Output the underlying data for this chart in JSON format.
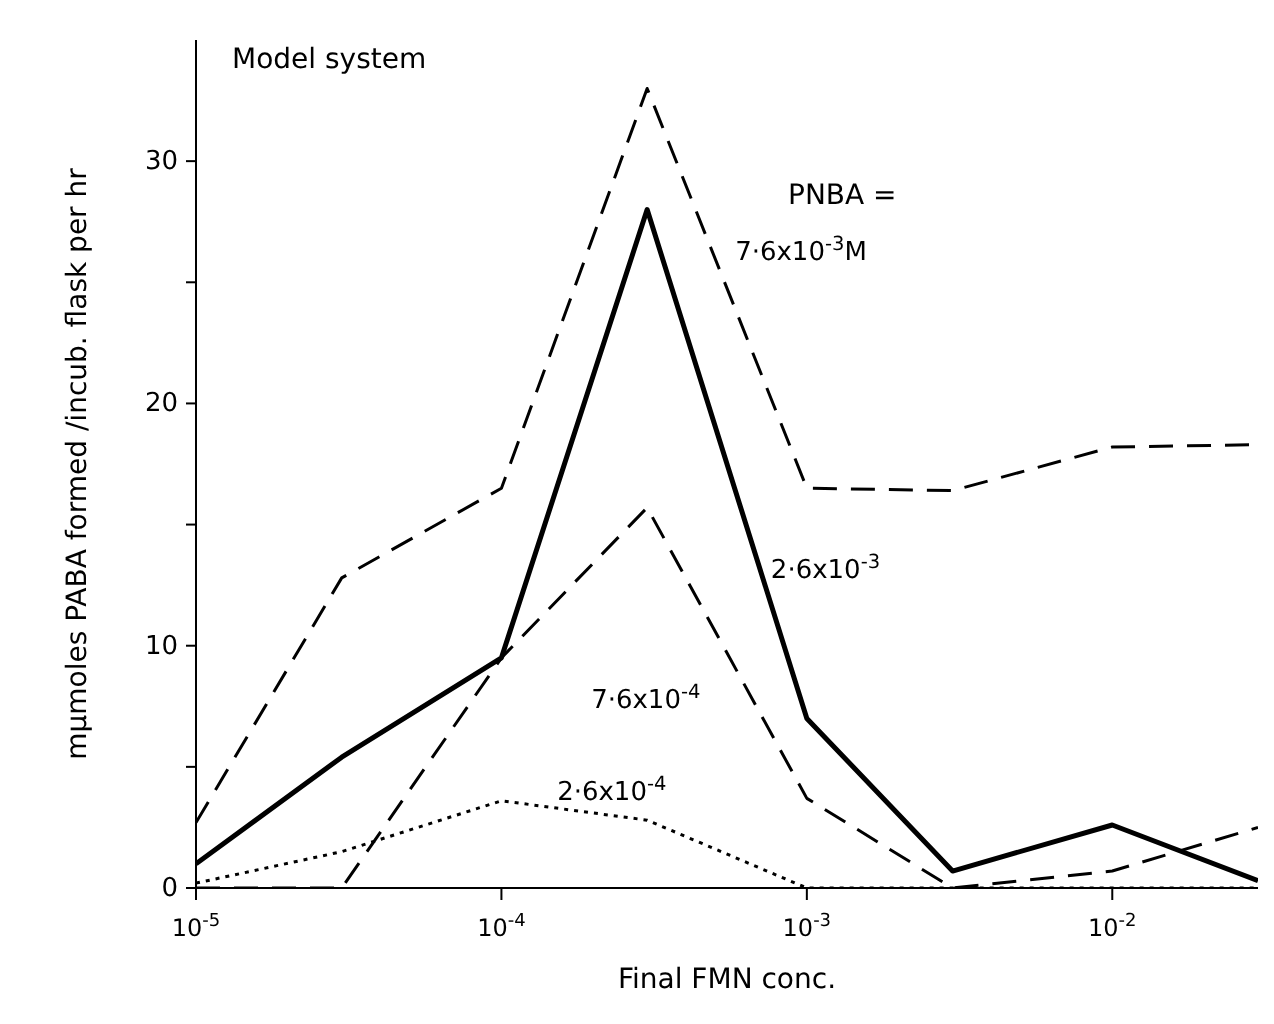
{
  "chart_data": {
    "type": "line",
    "title": "Model system",
    "xlabel": "Final FMN conc.",
    "ylabel": "mμmoles PABA formed /incub. flask per hr",
    "annotations": [
      "PNBA ="
    ],
    "x": [
      1e-05,
      3e-05,
      0.0001,
      0.0003,
      0.001,
      0.003,
      0.01,
      0.03
    ],
    "log": "x",
    "xlim": [
      1e-05,
      0.03
    ],
    "xticks": [
      {
        "value": 1e-05,
        "label": "10$^{-5}$"
      },
      {
        "value": 0.0001,
        "label": "10$^{-4}$"
      },
      {
        "value": 0.001,
        "label": "10$^{-3}$"
      },
      {
        "value": 0.01,
        "label": "10$^{-2}$"
      }
    ],
    "ylim": [
      0,
      35
    ],
    "yticks": [
      0,
      {
        "value": 5,
        "label": null
      },
      10,
      {
        "value": 15,
        "label": null
      },
      20,
      {
        "value": 25,
        "label": null
      },
      30
    ],
    "grid": false,
    "legend": false,
    "marker": "none",
    "series": [
      {
        "name": "7·6x10$^{-3}$M",
        "color": "#000000",
        "line_style": "dashed",
        "values": [
          2.7,
          12.8,
          16.5,
          33,
          16.5,
          16.4,
          18.2,
          18.3
        ]
      },
      {
        "name": "2·6x10$^{-3}$",
        "color": "#000000",
        "line_style": "solid",
        "values": [
          1.0,
          5.4,
          9.5,
          28,
          7,
          0.7,
          2.6,
          0.3
        ]
      },
      {
        "name": "7·6x10$^{-4}$",
        "color": "#000000",
        "line_style": "dashed",
        "values": [
          0,
          0,
          9.5,
          15.7,
          3.7,
          0,
          0.7,
          2.5
        ]
      },
      {
        "name": "2·6x10$^{-4}$",
        "color": "#000000",
        "line_style": "dotted",
        "values": [
          0.2,
          1.5,
          3.6,
          2.8,
          0,
          0,
          0,
          0
        ]
      }
    ]
  }
}
